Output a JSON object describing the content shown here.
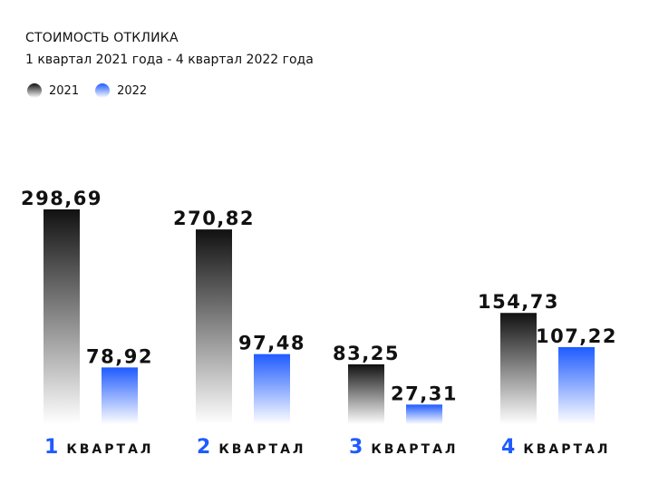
{
  "header": {
    "title": "СТОИМОСТЬ ОТКЛИКА",
    "subtitle": "1 квартал 2021 года - 4 квартал 2022 года"
  },
  "legend": [
    {
      "label": "2021",
      "color": "#111111"
    },
    {
      "label": "2022",
      "color": "#1f5bff"
    }
  ],
  "chart_data": {
    "type": "bar",
    "title": "СТОИМОСТЬ ОТКЛИКА",
    "subtitle": "1 квартал 2021 года - 4 квартал 2022 года",
    "categories": [
      {
        "num": "1",
        "word": "КВАРТАЛ"
      },
      {
        "num": "2",
        "word": "КВАРТАЛ"
      },
      {
        "num": "3",
        "word": "КВАРТАЛ"
      },
      {
        "num": "4",
        "word": "КВАРТАЛ"
      }
    ],
    "series": [
      {
        "name": "2021",
        "values": [
          298.69,
          270.82,
          83.25,
          154.73
        ],
        "labels": [
          "298,69",
          "270,82",
          "83,25",
          "154,73"
        ]
      },
      {
        "name": "2022",
        "values": [
          78.92,
          97.48,
          27.31,
          107.22
        ],
        "labels": [
          "78,92",
          "97,48",
          "27,31",
          "107,22"
        ]
      }
    ],
    "legend_position": "top-left",
    "grid": false
  }
}
